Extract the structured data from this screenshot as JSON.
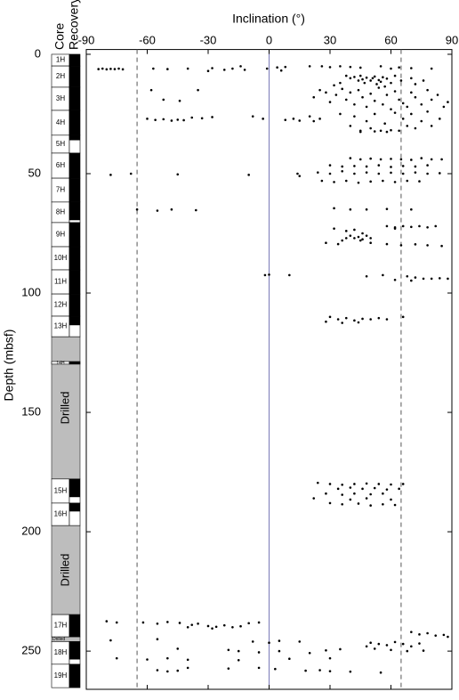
{
  "chart_data": {
    "type": "scatter",
    "x_label": "Inclination (°)",
    "y_label": "Depth (mbsf)",
    "core_header": "Core",
    "recovery_header": "Recovery",
    "xlim": [
      -90,
      90
    ],
    "xticks": [
      -90,
      -60,
      -30,
      0,
      30,
      60,
      90
    ],
    "ylim": [
      -2,
      266
    ],
    "yticks": [
      0,
      50,
      100,
      150,
      200,
      250
    ],
    "y_inverted": true,
    "color": "#000000",
    "ref_lines": [
      {
        "value": -65,
        "style": "dashed",
        "color": "#555555"
      },
      {
        "value": 0,
        "style": "solid",
        "color": "#7a7ab8"
      },
      {
        "value": 65,
        "style": "dashed",
        "color": "#555555"
      }
    ],
    "cores": [
      {
        "label": "1H",
        "top": 0,
        "bottom": 4.9,
        "recovered": 4.9
      },
      {
        "label": "2H",
        "top": 4.9,
        "bottom": 13.8,
        "recovered": 13.8
      },
      {
        "label": "3H",
        "top": 13.8,
        "bottom": 23.5,
        "recovered": 23.5
      },
      {
        "label": "4H",
        "top": 23.5,
        "bottom": 33.9,
        "recovered": 33.9
      },
      {
        "label": "5H",
        "top": 33.9,
        "bottom": 41.4,
        "recovered": 36
      },
      {
        "label": "6H",
        "top": 41.4,
        "bottom": 51.9,
        "recovered": 51.9
      },
      {
        "label": "7H",
        "top": 51.9,
        "bottom": 61.9,
        "recovered": 61.9
      },
      {
        "label": "8H",
        "top": 61.9,
        "bottom": 70.5,
        "recovered": 69.5
      },
      {
        "label": "9H",
        "top": 70.5,
        "bottom": 80.6,
        "recovered": 80.6
      },
      {
        "label": "10H",
        "top": 80.6,
        "bottom": 90.3,
        "recovered": 90.3
      },
      {
        "label": "11H",
        "top": 90.3,
        "bottom": 100.4,
        "recovered": 100.4
      },
      {
        "label": "12H",
        "top": 100.4,
        "bottom": 109.7,
        "recovered": 109.7
      },
      {
        "label": "13H",
        "top": 109.7,
        "bottom": 118.3,
        "recovered": 113.5
      },
      {
        "label": "14H",
        "top": 128.7,
        "bottom": 129.8,
        "recovered": 129.8
      },
      {
        "label": "15H",
        "top": 177.9,
        "bottom": 188,
        "recovered": 185.5
      },
      {
        "label": "16H",
        "top": 188,
        "bottom": 197.4,
        "recovered": 191.5
      },
      {
        "label": "17H",
        "top": 234.7,
        "bottom": 244,
        "recovered": 244
      },
      {
        "label": "18H",
        "top": 246,
        "bottom": 255.5,
        "recovered": 253.5
      },
      {
        "label": "19H",
        "top": 255.5,
        "bottom": 265.3,
        "recovered": 265.3
      }
    ],
    "drilled": [
      {
        "label": "Drilled",
        "top": 118.3,
        "bottom": 177.9
      },
      {
        "label": "Drilled",
        "top": 197.4,
        "bottom": 234.7
      },
      {
        "label": "Drilled",
        "top": 244,
        "bottom": 246
      }
    ],
    "x": [
      -84,
      -82,
      -80,
      -78,
      -76,
      -74,
      -72,
      -57,
      -50,
      -40,
      -30,
      -28,
      -22,
      -18,
      -14,
      -12,
      -1,
      4,
      6,
      8,
      20,
      26,
      30,
      35,
      40,
      45,
      55,
      60,
      64,
      70,
      80,
      38,
      40,
      42,
      44,
      45,
      46,
      47,
      48,
      50,
      51,
      52,
      53,
      54,
      55,
      56,
      58,
      60,
      62,
      65,
      70,
      35,
      32,
      57,
      72,
      76,
      22,
      25,
      28,
      30,
      33,
      36,
      38,
      40,
      42,
      44,
      46,
      48,
      50,
      52,
      54,
      56,
      58,
      60,
      62,
      64,
      66,
      68,
      70,
      72,
      75,
      78,
      80,
      83,
      86,
      88,
      -58,
      -52,
      -35,
      -44,
      -60,
      -56,
      -52,
      -48,
      -45,
      -42,
      -38,
      -33,
      -28,
      -8,
      -3,
      8,
      12,
      15,
      20,
      22,
      25,
      35,
      40,
      42,
      45,
      48,
      50,
      52,
      55,
      57,
      60,
      62,
      64,
      66,
      68,
      70,
      72,
      75,
      78,
      80,
      84,
      45,
      58,
      52,
      40,
      45,
      50,
      55,
      60,
      65,
      70,
      75,
      80,
      85,
      30,
      36,
      42,
      48,
      54,
      60,
      66,
      72,
      78,
      24,
      30,
      36,
      42,
      48,
      54,
      60,
      66,
      72,
      78,
      84,
      26,
      32,
      38,
      44,
      50,
      56,
      62,
      68,
      74,
      -78,
      -68,
      -45,
      -10,
      14,
      15,
      -65,
      -55,
      -48,
      -36,
      32,
      40,
      48,
      58,
      70,
      58,
      62,
      66,
      70,
      74,
      78,
      82,
      32,
      38,
      42,
      46,
      40,
      42,
      44,
      46,
      38,
      45,
      48,
      50,
      36,
      28,
      34,
      50,
      58,
      65,
      72,
      78,
      85,
      62,
      -2,
      0,
      10,
      48,
      56,
      68,
      72,
      76,
      80,
      84,
      88,
      62,
      70,
      30,
      34,
      38,
      42,
      46,
      50,
      54,
      58,
      28,
      36,
      44,
      66,
      24,
      30,
      36,
      42,
      48,
      54,
      60,
      66,
      34,
      40,
      46,
      52,
      58,
      64,
      28,
      36,
      42,
      50,
      56,
      22,
      40,
      48,
      60,
      30,
      36,
      44,
      50,
      56,
      62,
      -80,
      -75,
      -62,
      -55,
      -50,
      -44,
      -38,
      -35,
      -30,
      -26,
      -22,
      -18,
      -14,
      -10,
      -5,
      -40,
      -28,
      70,
      74,
      78,
      82,
      86,
      88,
      -78,
      -55,
      -8,
      0,
      5,
      15,
      50,
      54,
      58,
      62,
      66,
      70,
      74,
      48,
      52,
      60,
      -45,
      -15,
      -5,
      -20,
      5,
      20,
      28,
      35,
      68,
      76,
      -75,
      -60,
      -50,
      -40,
      -15,
      10,
      30,
      -55,
      -50,
      -45,
      -40,
      -20,
      -5,
      3,
      18,
      25,
      30,
      40,
      55
    ],
    "values": [
      6.2,
      6,
      6.3,
      6.1,
      6.2,
      6,
      6.3,
      6,
      6.2,
      6,
      7,
      5.8,
      6.5,
      6,
      5,
      6.5,
      6,
      5.5,
      6.8,
      5.3,
      5,
      5,
      5.4,
      5,
      5.3,
      5.6,
      5,
      6,
      5.5,
      5.8,
      6,
      9,
      10,
      9.5,
      11,
      9,
      10.5,
      12,
      9.8,
      11,
      10,
      9.3,
      12.5,
      10.8,
      11.5,
      9.6,
      10.2,
      12,
      9,
      11,
      10,
      12,
      13,
      13.5,
      12.5,
      11,
      18,
      15,
      16,
      20,
      17,
      14.5,
      19,
      16,
      21,
      15,
      18,
      22,
      16.5,
      19.5,
      14,
      21,
      17,
      23,
      15.5,
      19,
      20.5,
      22,
      16,
      18,
      21,
      15,
      19,
      17,
      22,
      20,
      15,
      19,
      15,
      19.5,
      27,
      27.5,
      27.2,
      27.8,
      27.4,
      27.6,
      26.5,
      26.8,
      26.3,
      26,
      27,
      27.5,
      27,
      27.8,
      26,
      28,
      27,
      25,
      30,
      26,
      32,
      28,
      31,
      25,
      32,
      29,
      31.8,
      24.5,
      32,
      27,
      30,
      25,
      31,
      28,
      24,
      30,
      27,
      32.5,
      32.5,
      32.3,
      43.5,
      44,
      43.7,
      44,
      43.8,
      44,
      44.2,
      43.5,
      44,
      44,
      46.5,
      47,
      46.8,
      47,
      46.5,
      47.2,
      46.8,
      47,
      46.5,
      49.5,
      50,
      49,
      50,
      49.5,
      50,
      49.6,
      50,
      49.5,
      50,
      49.8,
      53,
      53.5,
      53,
      53.8,
      53.3,
      53,
      53.5,
      53,
      53.2,
      50.5,
      50,
      50.3,
      50.5,
      50,
      51,
      65,
      65.5,
      65,
      65.3,
      64.5,
      65,
      65,
      64.8,
      65,
      72,
      72.5,
      72,
      72.3,
      72,
      72.5,
      72,
      73,
      74,
      73.5,
      75,
      76,
      77,
      76.5,
      77.5,
      77,
      78,
      76,
      77,
      78,
      79,
      79.5,
      79,
      79.5,
      80,
      79.6,
      80,
      80.3,
      73,
      92.5,
      92.3,
      92.5,
      93,
      92.5,
      93,
      93.5,
      94,
      94,
      93.8,
      94,
      94.5,
      94.8,
      110,
      111,
      110.5,
      111.5,
      110.8,
      111,
      110.5,
      111,
      112,
      112.5,
      112.3,
      110,
      179.5,
      180,
      180.3,
      180,
      179.8,
      180,
      180.2,
      180,
      182,
      181.5,
      182,
      181.7,
      182.3,
      182,
      184,
      184.5,
      184,
      184.3,
      184,
      186,
      186.5,
      186,
      186.5,
      188,
      188.5,
      188.2,
      189,
      188.5,
      188.8,
      237.5,
      238,
      238,
      238.5,
      237.8,
      238.2,
      239,
      238.5,
      239.5,
      239.8,
      239.2,
      240,
      239.6,
      238.3,
      238,
      240,
      240.5,
      242,
      243,
      242.5,
      243.5,
      243.2,
      244,
      245.5,
      245,
      246,
      246.5,
      245.7,
      246,
      246.5,
      247,
      247.5,
      246.2,
      247,
      248,
      246.8,
      248,
      249,
      249.5,
      249,
      250,
      250.5,
      249.5,
      250,
      250.8,
      249.7,
      249.2,
      250,
      249.8,
      253,
      253.5,
      253,
      253.6,
      253.8,
      253.2,
      253,
      258,
      258.5,
      258.2,
      257,
      257.3,
      257,
      257.5,
      258.2,
      258,
      258.4,
      258.6,
      259
    ]
  }
}
